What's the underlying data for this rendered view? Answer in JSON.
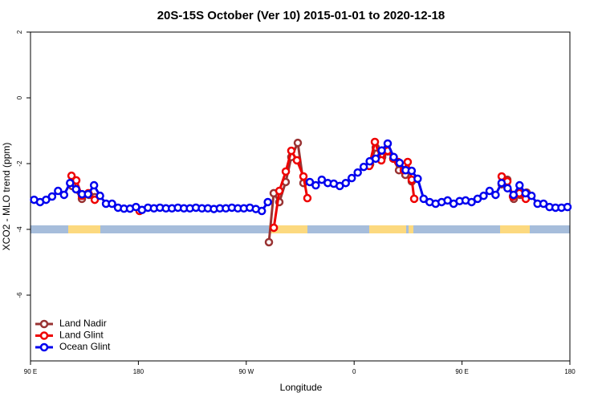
{
  "chart_data": {
    "type": "line",
    "title": "20S-15S October (Ver 10)   2015-01-01 to 2020-12-18",
    "x_label": "Longitude",
    "y_label": "XCO2 - MLO trend (ppm)",
    "xlim": [
      90,
      540
    ],
    "xticks": [
      {
        "value": 90,
        "label": "90 E"
      },
      {
        "value": 180,
        "label": "180"
      },
      {
        "value": 270,
        "label": "90 W"
      },
      {
        "value": 360,
        "label": "0"
      },
      {
        "value": 450,
        "label": "90 E"
      },
      {
        "value": 540,
        "label": "180"
      }
    ],
    "ylim": [
      -8,
      2
    ],
    "yticks": [
      2,
      0,
      -2,
      -4,
      -6
    ],
    "legend": "lower left",
    "series": [
      {
        "name": "Land Nadir",
        "color": "#993333",
        "x": [
          124.8,
          132.9,
          138.9,
          143.6,
          null,
          288.9,
          292.9,
          297.6,
          302.9,
          307.6,
          313,
          317.7,
          null,
          373.3,
          378,
          383.4,
          388,
          392.7,
          397.4,
          402.7,
          408.1,
          null,
          483.1,
          487.8,
          493.2,
          498.5,
          503.9
        ],
        "values": [
          -2.68,
          -3.07,
          -2.95,
          -3.02,
          null,
          -4.39,
          -2.9,
          -3.17,
          -2.56,
          -1.8,
          -1.37,
          -2.59,
          null,
          -2.02,
          -1.51,
          -1.8,
          -1.63,
          -1.85,
          -2.2,
          -2.34,
          -2.54,
          null,
          -2.63,
          -2.49,
          -3.07,
          -2.95,
          -2.88
        ]
      },
      {
        "name": "Land Glint",
        "color": "#ee0000",
        "x": [
          124.2,
          128.2,
          132.9,
          138.2,
          143.6,
          null,
          181,
          null,
          293,
          297.6,
          303,
          307.6,
          312.3,
          317.7,
          321,
          null,
          372.6,
          377.3,
          382.7,
          388,
          392.7,
          396.7,
          401.4,
          404.7,
          408.1,
          410.1,
          null,
          483.1,
          487.8,
          492.5,
          497.8,
          503.2
        ],
        "values": [
          -2.37,
          -2.51,
          -2.98,
          -2.9,
          -3.1,
          null,
          -3.44,
          null,
          -3.95,
          -2.83,
          -2.24,
          -1.61,
          -1.9,
          -2.39,
          -3.05,
          null,
          -2.07,
          -1.34,
          -1.9,
          -1.61,
          -1.85,
          -1.95,
          -2.2,
          -1.95,
          -2.49,
          -3.07,
          null,
          -2.39,
          -2.54,
          -3.0,
          -2.9,
          -3.07
        ]
      },
      {
        "name": "Ocean Glint",
        "color": "#0000ee",
        "x": [
          93,
          98,
          103,
          108,
          113,
          118,
          123,
          128,
          133,
          138,
          143,
          148,
          153,
          158,
          163,
          168,
          173,
          178,
          183,
          188,
          193,
          198,
          203,
          208,
          213,
          218,
          223,
          228,
          233,
          238,
          243,
          248,
          253,
          258,
          263,
          268,
          273,
          278,
          283,
          288,
          null,
          323,
          328,
          333,
          338,
          343,
          348,
          353,
          358,
          363,
          368,
          373,
          378,
          383,
          388,
          393,
          398,
          403,
          408,
          413,
          418,
          423,
          428,
          433,
          438,
          443,
          448,
          453,
          458,
          463,
          468,
          473,
          478,
          483,
          488,
          493,
          498,
          503,
          508,
          513,
          518,
          523,
          528,
          533,
          538
        ],
        "values": [
          -3.1,
          -3.17,
          -3.1,
          -3.0,
          -2.83,
          -2.95,
          -2.59,
          -2.78,
          -2.93,
          -2.93,
          -2.66,
          -2.98,
          -3.22,
          -3.22,
          -3.34,
          -3.37,
          -3.37,
          -3.32,
          -3.41,
          -3.34,
          -3.36,
          -3.34,
          -3.36,
          -3.36,
          -3.34,
          -3.36,
          -3.36,
          -3.34,
          -3.36,
          -3.36,
          -3.38,
          -3.36,
          -3.36,
          -3.34,
          -3.36,
          -3.36,
          -3.34,
          -3.38,
          -3.44,
          -3.17,
          null,
          -2.56,
          -2.66,
          -2.49,
          -2.59,
          -2.61,
          -2.68,
          -2.59,
          -2.44,
          -2.27,
          -2.1,
          -1.93,
          -1.85,
          -1.6,
          -1.39,
          -1.8,
          -1.98,
          -2.2,
          -2.22,
          -2.46,
          -3.07,
          -3.17,
          -3.22,
          -3.17,
          -3.12,
          -3.22,
          -3.14,
          -3.12,
          -3.17,
          -3.07,
          -2.98,
          -2.83,
          -2.95,
          -2.59,
          -2.75,
          -2.95,
          -2.66,
          -2.9,
          -2.98,
          -3.22,
          -3.22,
          -3.32,
          -3.34,
          -3.34,
          -3.32
        ]
      }
    ]
  }
}
